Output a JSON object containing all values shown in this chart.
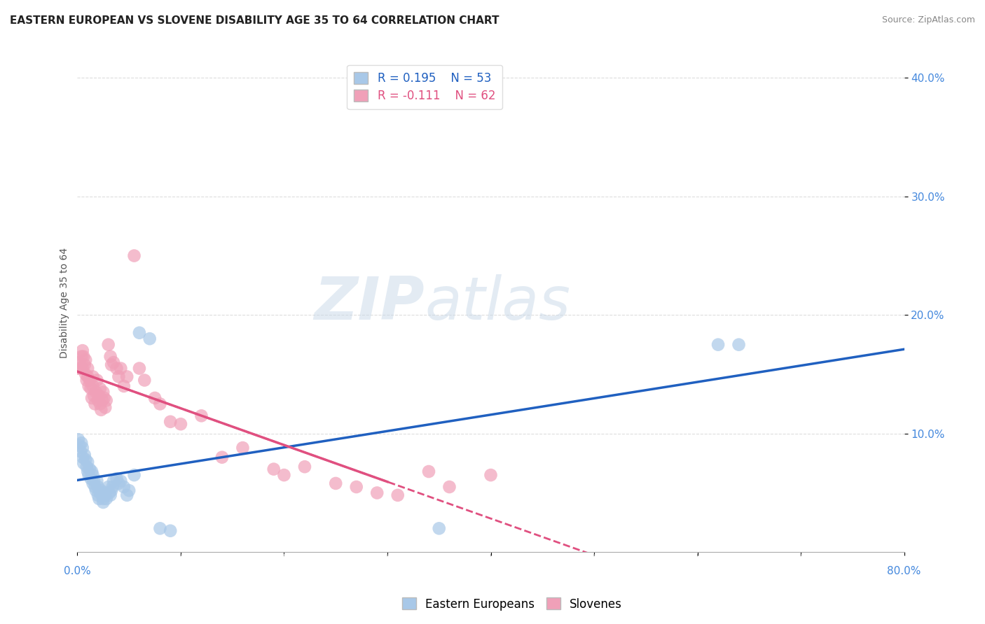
{
  "title": "EASTERN EUROPEAN VS SLOVENE DISABILITY AGE 35 TO 64 CORRELATION CHART",
  "source": "Source: ZipAtlas.com",
  "ylabel": "Disability Age 35 to 64",
  "legend_label1": "Eastern Europeans",
  "legend_label2": "Slovenes",
  "r1": "R = 0.195",
  "n1": "N = 53",
  "r2": "R = -0.111",
  "n2": "N = 62",
  "watermark_zip": "ZIP",
  "watermark_atlas": "atlas",
  "blue_color": "#A8C8E8",
  "pink_color": "#F0A0B8",
  "blue_line_color": "#2060C0",
  "pink_line_color": "#E05080",
  "xmin": 0.0,
  "xmax": 0.8,
  "ymin": 0.0,
  "ymax": 0.42,
  "yticks": [
    0.1,
    0.2,
    0.3,
    0.4
  ],
  "ytick_labels": [
    "10.0%",
    "20.0%",
    "30.0%",
    "40.0%"
  ],
  "blue_scatter_x": [
    0.001,
    0.002,
    0.003,
    0.004,
    0.005,
    0.005,
    0.006,
    0.007,
    0.008,
    0.009,
    0.01,
    0.01,
    0.011,
    0.012,
    0.013,
    0.014,
    0.015,
    0.015,
    0.016,
    0.017,
    0.018,
    0.019,
    0.02,
    0.02,
    0.021,
    0.022,
    0.023,
    0.024,
    0.025,
    0.025,
    0.026,
    0.027,
    0.028,
    0.03,
    0.031,
    0.032,
    0.033,
    0.034,
    0.035,
    0.038,
    0.04,
    0.042,
    0.045,
    0.048,
    0.05,
    0.055,
    0.06,
    0.07,
    0.08,
    0.09,
    0.35,
    0.62,
    0.64
  ],
  "blue_scatter_y": [
    0.095,
    0.09,
    0.085,
    0.092,
    0.08,
    0.088,
    0.075,
    0.082,
    0.078,
    0.072,
    0.068,
    0.076,
    0.065,
    0.07,
    0.062,
    0.068,
    0.058,
    0.065,
    0.06,
    0.055,
    0.052,
    0.06,
    0.048,
    0.055,
    0.045,
    0.05,
    0.052,
    0.048,
    0.045,
    0.042,
    0.05,
    0.048,
    0.045,
    0.055,
    0.05,
    0.048,
    0.052,
    0.055,
    0.06,
    0.062,
    0.058,
    0.06,
    0.055,
    0.048,
    0.052,
    0.065,
    0.185,
    0.18,
    0.02,
    0.018,
    0.02,
    0.175,
    0.175
  ],
  "pink_scatter_x": [
    0.001,
    0.002,
    0.003,
    0.004,
    0.005,
    0.005,
    0.006,
    0.007,
    0.008,
    0.008,
    0.009,
    0.01,
    0.01,
    0.011,
    0.012,
    0.013,
    0.014,
    0.015,
    0.015,
    0.016,
    0.017,
    0.018,
    0.019,
    0.02,
    0.021,
    0.022,
    0.022,
    0.023,
    0.024,
    0.025,
    0.026,
    0.027,
    0.028,
    0.03,
    0.032,
    0.033,
    0.035,
    0.038,
    0.04,
    0.042,
    0.045,
    0.048,
    0.055,
    0.06,
    0.065,
    0.075,
    0.08,
    0.09,
    0.1,
    0.12,
    0.14,
    0.16,
    0.19,
    0.2,
    0.22,
    0.25,
    0.27,
    0.29,
    0.31,
    0.34,
    0.36,
    0.4
  ],
  "pink_scatter_y": [
    0.155,
    0.16,
    0.155,
    0.165,
    0.17,
    0.155,
    0.165,
    0.158,
    0.15,
    0.162,
    0.145,
    0.155,
    0.148,
    0.14,
    0.145,
    0.138,
    0.13,
    0.14,
    0.148,
    0.132,
    0.125,
    0.135,
    0.145,
    0.128,
    0.132,
    0.125,
    0.138,
    0.12,
    0.128,
    0.135,
    0.13,
    0.122,
    0.128,
    0.175,
    0.165,
    0.158,
    0.16,
    0.155,
    0.148,
    0.155,
    0.14,
    0.148,
    0.25,
    0.155,
    0.145,
    0.13,
    0.125,
    0.11,
    0.108,
    0.115,
    0.08,
    0.088,
    0.07,
    0.065,
    0.072,
    0.058,
    0.055,
    0.05,
    0.048,
    0.068,
    0.055,
    0.065
  ],
  "background_color": "#FFFFFF",
  "grid_color": "#DDDDDD",
  "title_fontsize": 11,
  "axis_label_fontsize": 10,
  "tick_fontsize": 11,
  "legend_fontsize": 12
}
